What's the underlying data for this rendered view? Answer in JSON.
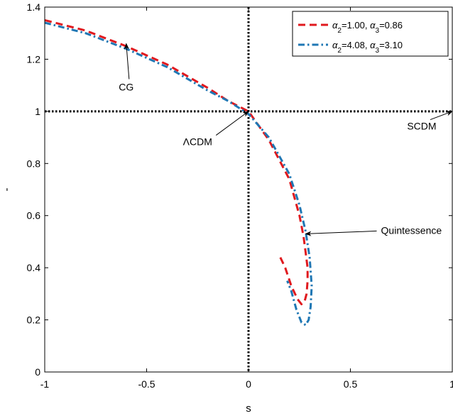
{
  "chart_data": {
    "type": "line",
    "xlabel": "s",
    "ylabel": "-",
    "xlim": [
      -1,
      1
    ],
    "ylim": [
      0,
      1.4
    ],
    "x_ticks": [
      "-1",
      "-0.5",
      "0",
      "0.5",
      "1"
    ],
    "x_tick_values": [
      -1,
      -0.5,
      0,
      0.5,
      1
    ],
    "y_ticks": [
      "0",
      "0.2",
      "0.4",
      "0.6",
      "0.8",
      "1",
      "1.2",
      "1.4"
    ],
    "y_tick_values": [
      0,
      0.2,
      0.4,
      0.6,
      0.8,
      1,
      1.2,
      1.4
    ],
    "grid": false,
    "legend_position": "top-right",
    "reference_lines": [
      {
        "orientation": "vertical",
        "value": 0,
        "style": "dotted",
        "color": "#000000"
      },
      {
        "orientation": "horizontal",
        "value": 1,
        "style": "dotted",
        "color": "#000000"
      }
    ],
    "series": [
      {
        "name_parts": {
          "a2": "α",
          "a2_sub": "2",
          "a2_val": "=1.00, ",
          "a3": "α",
          "a3_sub": "3",
          "a3_val": "=0.86"
        },
        "color": "#e0191e",
        "style": "dashed",
        "x": [
          -1,
          -0.8,
          -0.6,
          -0.4,
          -0.2,
          -0.1,
          0,
          0.1,
          0.2,
          0.25,
          0.27,
          0.28,
          0.29,
          0.29,
          0.285,
          0.275,
          0.26,
          0.24,
          0.21,
          0.18,
          0.15
        ],
        "y": [
          1.35,
          1.31,
          1.25,
          1.18,
          1.09,
          1.04,
          1.0,
          0.89,
          0.74,
          0.6,
          0.52,
          0.46,
          0.4,
          0.35,
          0.3,
          0.27,
          0.26,
          0.28,
          0.33,
          0.4,
          0.45
        ]
      },
      {
        "name_parts": {
          "a2": "α",
          "a2_sub": "2",
          "a2_val": "=4.08, ",
          "a3": "α",
          "a3_sub": "3",
          "a3_val": "=3.10"
        },
        "color": "#1f77b4",
        "style": "dashdot",
        "x": [
          -1,
          -0.8,
          -0.6,
          -0.4,
          -0.2,
          -0.1,
          0,
          0.1,
          0.2,
          0.25,
          0.28,
          0.3,
          0.31,
          0.305,
          0.295,
          0.28,
          0.26,
          0.235,
          0.21,
          0.19
        ],
        "y": [
          1.34,
          1.3,
          1.24,
          1.17,
          1.08,
          1.04,
          0.99,
          0.9,
          0.76,
          0.64,
          0.54,
          0.44,
          0.33,
          0.25,
          0.2,
          0.18,
          0.19,
          0.24,
          0.31,
          0.35
        ]
      }
    ],
    "annotations": [
      {
        "text": "CG",
        "text_at": [
          -0.6,
          1.08
        ],
        "arrow_to": [
          -0.6,
          1.26
        ]
      },
      {
        "text": "ΛCDM",
        "text_at": [
          -0.25,
          0.87
        ],
        "arrow_to": [
          0,
          1.0
        ]
      },
      {
        "text": "Quintessence",
        "text_at": [
          0.65,
          0.53
        ],
        "arrow_to": [
          0.28,
          0.53
        ]
      },
      {
        "text": "SCDM",
        "text_at": [
          0.85,
          0.93
        ],
        "arrow_to": [
          1.0,
          1.0
        ]
      }
    ]
  }
}
